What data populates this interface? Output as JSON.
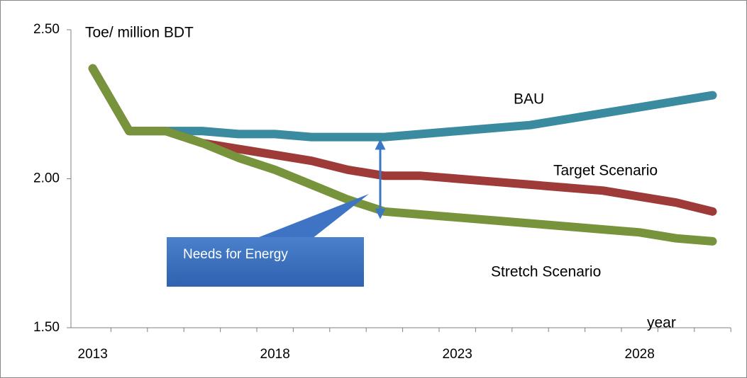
{
  "chart_data": {
    "type": "line",
    "y_label": "Toe/ million BDT",
    "x_label": "year",
    "categories": [
      "2013",
      null,
      null,
      null,
      null,
      "2018",
      null,
      null,
      null,
      null,
      "2023",
      null,
      null,
      null,
      null,
      "2028",
      null,
      null
    ],
    "series": [
      {
        "name": "BAU",
        "color": "#3a8aa0",
        "values": [
          2.37,
          2.16,
          2.16,
          2.16,
          2.15,
          2.15,
          2.14,
          2.14,
          2.14,
          2.15,
          2.16,
          2.17,
          2.18,
          2.2,
          2.22,
          2.24,
          2.26,
          2.28
        ]
      },
      {
        "name": "Target Scenario",
        "color": "#9e3a38",
        "values": [
          2.37,
          2.16,
          2.16,
          2.12,
          2.1,
          2.08,
          2.06,
          2.03,
          2.01,
          2.01,
          2.0,
          1.99,
          1.98,
          1.97,
          1.96,
          1.94,
          1.92,
          1.89
        ]
      },
      {
        "name": "Stretch Scenario",
        "color": "#77933c",
        "values": [
          2.37,
          2.16,
          2.16,
          2.12,
          2.07,
          2.03,
          1.98,
          1.93,
          1.89,
          1.88,
          1.87,
          1.86,
          1.85,
          1.84,
          1.83,
          1.82,
          1.8,
          1.79
        ]
      }
    ],
    "annotation": "Needs for Energy",
    "ylim": [
      1.5,
      2.5
    ],
    "yticks": [
      {
        "value": 1.5,
        "label": "1.50"
      },
      {
        "value": 2.0,
        "label": "2.00"
      },
      {
        "value": 2.5,
        "label": "2.50"
      }
    ]
  }
}
